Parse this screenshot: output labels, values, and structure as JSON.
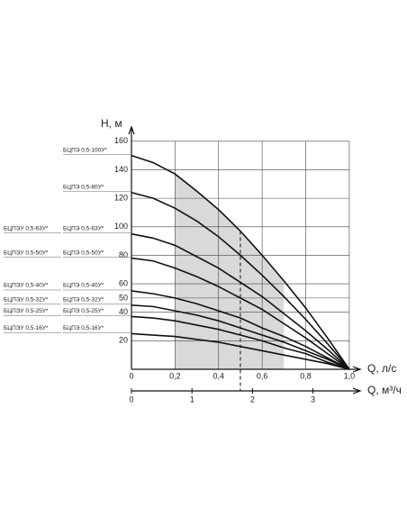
{
  "chart_data": {
    "type": "line",
    "y_label": "H, м",
    "x_label": "Q, л/с",
    "x2_label": "Q, м³/ч",
    "x": [
      0,
      0.1,
      0.2,
      0.3,
      0.4,
      0.5,
      0.6,
      0.7,
      0.8,
      0.9,
      1.0
    ],
    "xlim": [
      0,
      1.05
    ],
    "xticks": [
      0,
      {
        "value": 0.2,
        "label": "0,2"
      },
      {
        "value": 0.4,
        "label": "0,4"
      },
      {
        "value": 0.6,
        "label": "0,6"
      },
      {
        "value": 0.8,
        "label": "0,8"
      },
      {
        "value": 1.0,
        "label": "1,0"
      }
    ],
    "x2lim": [
      0,
      3.78
    ],
    "x2ticks": [
      0,
      1,
      2,
      3
    ],
    "ylim": [
      0,
      170
    ],
    "yticks": [
      20,
      40,
      50,
      60,
      80,
      100,
      120,
      140,
      160
    ],
    "grid": true,
    "color": "#111",
    "series": [
      {
        "name": "БЦПЭ 0,5-100У*",
        "values": [
          150,
          145,
          137,
          125,
          112,
          97,
          80,
          62,
          43,
          22,
          0
        ]
      },
      {
        "name": "БЦПЭ 0,5-80У*",
        "values": [
          124,
          120,
          113,
          104,
          93,
          80,
          66,
          51,
          35,
          18,
          0
        ]
      },
      {
        "name": "БЦПЭ 0,5-63У*",
        "name2": "БЦПЭУ 0,5-63У*",
        "values": [
          95,
          92,
          87,
          79,
          71,
          61,
          51,
          39,
          27,
          14,
          0
        ]
      },
      {
        "name": "БЦПЭ 0,5-50У*",
        "name2": "БЦПЭУ 0,5-50У*",
        "values": [
          78,
          76,
          71,
          65,
          58,
          50,
          42,
          32,
          22,
          11,
          0
        ]
      },
      {
        "name": "БЦПЭ 0,5-40У*",
        "name2": "БЦПЭУ 0,5-40У*",
        "values": [
          55,
          53,
          50,
          46,
          41,
          36,
          29,
          23,
          16,
          8,
          0
        ]
      },
      {
        "name": "БЦПЭ 0,5-32У*",
        "name2": "БЦПЭУ 0,5-32У*",
        "values": [
          45,
          44,
          41,
          38,
          34,
          29,
          24,
          19,
          13,
          7,
          0
        ]
      },
      {
        "name": "БЦПЭ 0,5-25У*",
        "name2": "БЦПЭУ 0,5-25У*",
        "values": [
          37,
          36,
          34,
          31,
          28,
          24,
          20,
          15,
          11,
          5,
          0
        ]
      },
      {
        "name": "БЦПЭ 0,5-16У*",
        "name2": "БЦПЭУ 0,5-16У*",
        "values": [
          25,
          24,
          23,
          21,
          19,
          16,
          13,
          10,
          7,
          4,
          0
        ]
      }
    ]
  }
}
